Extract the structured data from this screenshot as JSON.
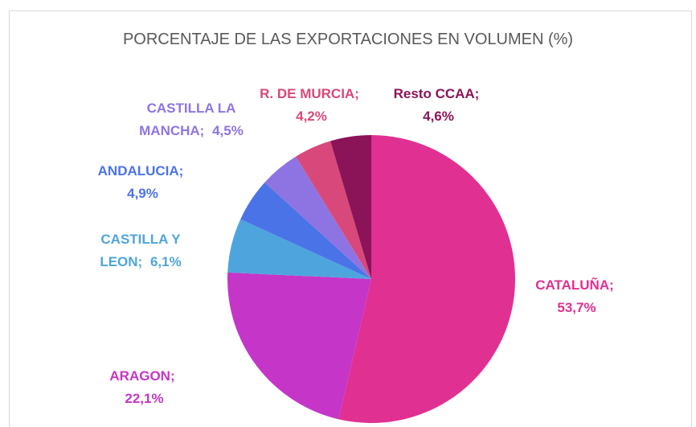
{
  "chart_data": {
    "type": "pie",
    "title": "PORCENTAJE DE LAS EXPORTACIONES EN VOLUMEN (%)",
    "categories": [
      "CATALUÑA;",
      "ARAGON;",
      "CASTILLA Y LEON;",
      "ANDALUCIA;",
      "CASTILLA LA MANCHA;",
      "R. DE MURCIA;",
      "Resto CCAA;"
    ],
    "values": [
      53.7,
      22.1,
      6.1,
      4.9,
      4.5,
      4.2,
      4.6
    ],
    "value_labels": [
      "53,7%",
      "22,1%",
      "6,1%",
      "4,9%",
      "4,5%",
      "4,2%",
      "4,6%"
    ],
    "colors": [
      "#e03092",
      "#c535c8",
      "#4ea5dd",
      "#4b73e8",
      "#8e74e3",
      "#d9487a",
      "#8b1358"
    ]
  }
}
